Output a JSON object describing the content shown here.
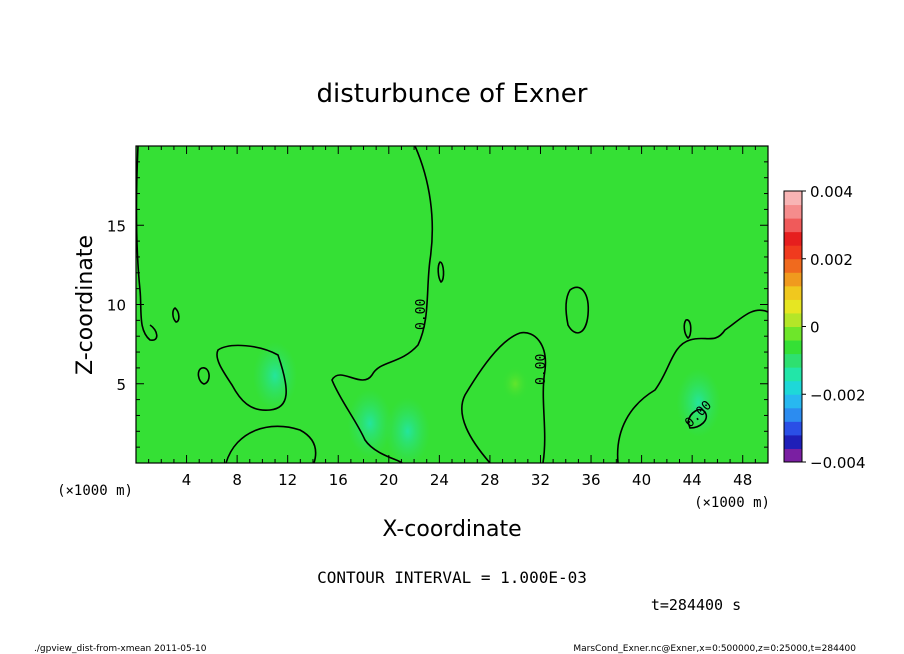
{
  "chart_data": {
    "type": "heatmap",
    "title": "disturbunce of Exner",
    "xlabel": "X-coordinate",
    "ylabel": "Z-coordinate",
    "x_unit": "(×1000 m)",
    "y_unit": "(×1000 m)",
    "xlim": [
      0,
      50
    ],
    "ylim": [
      0,
      20
    ],
    "x_ticks": [
      4,
      8,
      12,
      16,
      20,
      24,
      28,
      32,
      36,
      40,
      44,
      48
    ],
    "y_ticks": [
      5,
      10,
      15
    ],
    "x_tick_labels": [
      "4",
      "8",
      "12",
      "16",
      "20",
      "24",
      "28",
      "32",
      "36",
      "40",
      "44",
      "48"
    ],
    "y_tick_labels": [
      "5",
      "10",
      "15"
    ],
    "colorbar": {
      "range": [
        -0.004,
        0.004
      ],
      "ticks": [
        0.004,
        0.002,
        0,
        -0.002,
        -0.004
      ],
      "tick_labels": [
        "0.004",
        "0.002",
        "0",
        "−0.002",
        "−0.004"
      ],
      "colors": [
        "#7a1fa2",
        "#1f1fb8",
        "#2a4fe6",
        "#2c8cf0",
        "#28b8f0",
        "#1ed8d8",
        "#22e6a8",
        "#2ee070",
        "#35e035",
        "#6ee62a",
        "#b4e628",
        "#e6e622",
        "#f0c81e",
        "#f09a1e",
        "#f06a1e",
        "#f03a1e",
        "#e61e1e",
        "#f05a5a",
        "#f58c8c",
        "#f8b4b4"
      ]
    },
    "contour_interval_text": "CONTOUR INTERVAL = 1.000E-03",
    "contour_labels": [
      "0.00",
      "0.00",
      "0.00"
    ],
    "background_value": 0,
    "anomalies": [
      {
        "x": 21.5,
        "y": 2.0,
        "value": -0.0008
      },
      {
        "x": 18.5,
        "y": 2.5,
        "value": -0.0005
      },
      {
        "x": 11,
        "y": 5.5,
        "value": -0.0004
      },
      {
        "x": 30,
        "y": 5.0,
        "value": 0.0003
      },
      {
        "x": 44.5,
        "y": 3.8,
        "value": -0.0005
      }
    ]
  },
  "annotations": {
    "time": "t=284400 s",
    "footer_left": "./gpview_dist-from-xmean  2011-05-10",
    "footer_right": "MarsCond_Exner.nc@Exner,x=0:500000,z=0:25000,t=284400"
  }
}
